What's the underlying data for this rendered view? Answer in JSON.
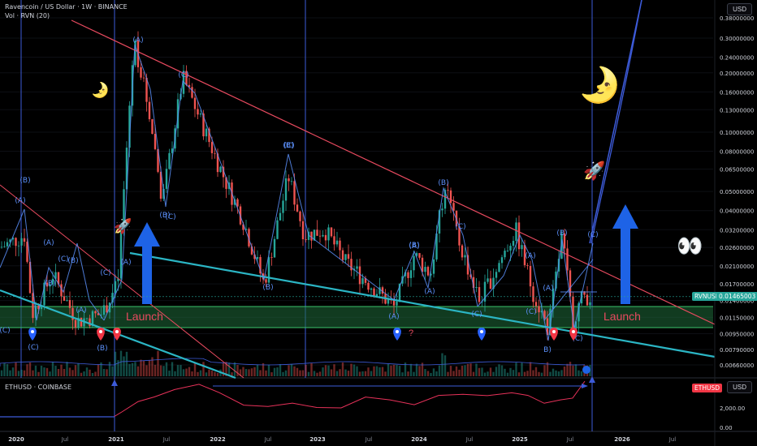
{
  "header": {
    "title": "Ravencoin / US Dollar · 1W · BINANCE",
    "indicator": "Vol · RVN (20)",
    "sub_title": "ETHUSD · COINBASE"
  },
  "currency_button": "USD",
  "sub_currency_button": "USD",
  "price_tag": {
    "symbol": "RVNUSD",
    "value": "0.01465003"
  },
  "sub_tag": {
    "symbol": "ETHUSD"
  },
  "colors": {
    "bg": "#000000",
    "up": "#26a69a",
    "down": "#ef5350",
    "wave": "#5b8ff9",
    "teal": "#2bb5c4",
    "red_line": "#e84a5f",
    "box": "#1f6b3a",
    "marker_blue": "#2962ff",
    "marker_red": "#f23645",
    "arrow_blue": "#1e63e6"
  },
  "emojis": {
    "moon": "🌛",
    "eyes": "👀",
    "rocket": "🚀"
  },
  "chart_data": {
    "type": "candlestick",
    "title": "Ravencoin / US Dollar · 1W · BINANCE",
    "y_scale": "log",
    "y_ticks": [
      "0.38000000",
      "0.30000000",
      "0.24000000",
      "0.20000000",
      "0.16000000",
      "0.13000000",
      "0.10000000",
      "0.08000000",
      "0.06500000",
      "0.05000000",
      "0.04000000",
      "0.03200000",
      "0.02600000",
      "0.02100000",
      "0.01700000",
      "0.01400000",
      "0.01150000",
      "0.00950000",
      "0.00790000",
      "0.00660000"
    ],
    "x_ticks": [
      "2020",
      "Jul",
      "2021",
      "Jul",
      "2022",
      "Jul",
      "2023",
      "Jul",
      "2024",
      "Jul",
      "2025",
      "Jul",
      "2026",
      "Jul"
    ],
    "wave_labels": [
      "(A)",
      "(B)",
      "(C)",
      "(B)",
      "(B)",
      "(C)",
      "(A)",
      "(A)",
      "(C)",
      "(B)",
      "(C)",
      "(B)",
      "(C)",
      "(A)",
      "(B)",
      "(C)",
      "(A)",
      "(B)",
      "(C)",
      "(A)",
      "(B)",
      "(A)",
      "(B)",
      "(C)",
      "(C)",
      "(A)",
      "(C)",
      "B)",
      "(C)",
      "(A)",
      "(B)",
      "(C)",
      "(A)"
    ],
    "annotations": [
      "Launch",
      "Launch",
      "?"
    ],
    "sub_chart": {
      "symbol": "ETHUSD · COINBASE",
      "y_ticks": [
        "2,000.00",
        "0.00"
      ]
    }
  }
}
